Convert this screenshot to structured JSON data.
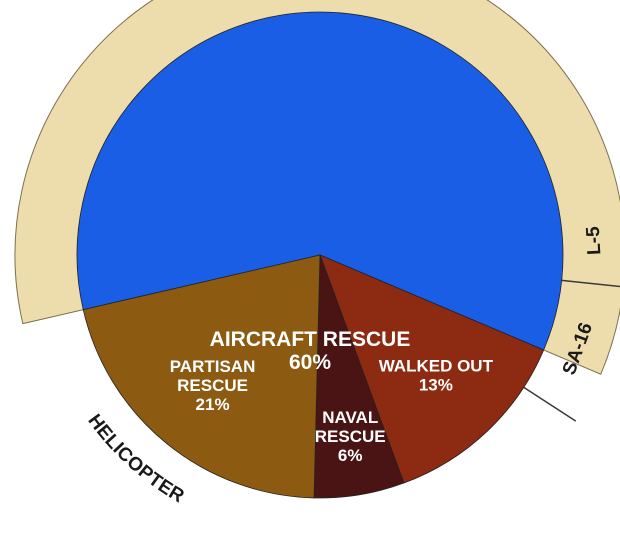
{
  "chart_data": {
    "type": "pie",
    "title": "",
    "slices": [
      {
        "label": "AIRCRAFT RESCUE",
        "value": 60,
        "value_label": "60%",
        "color": "#1a5ee6"
      },
      {
        "label": "WALKED OUT",
        "value": 13,
        "value_label": "13%",
        "color": "#8c2a12"
      },
      {
        "label": "NAVAL RESCUE",
        "value": 6,
        "value_label": "6%",
        "color": "#4a1414"
      },
      {
        "label": "PARTISAN RESCUE",
        "value": 21,
        "value_label": "21%",
        "color": "#8c5a10"
      }
    ],
    "aircraft_breakdown": {
      "ring_color": "#eddcac",
      "segments": [
        {
          "label": "HELICOPTER"
        },
        {
          "label": "SA-16"
        },
        {
          "label": "L-5"
        }
      ]
    }
  }
}
